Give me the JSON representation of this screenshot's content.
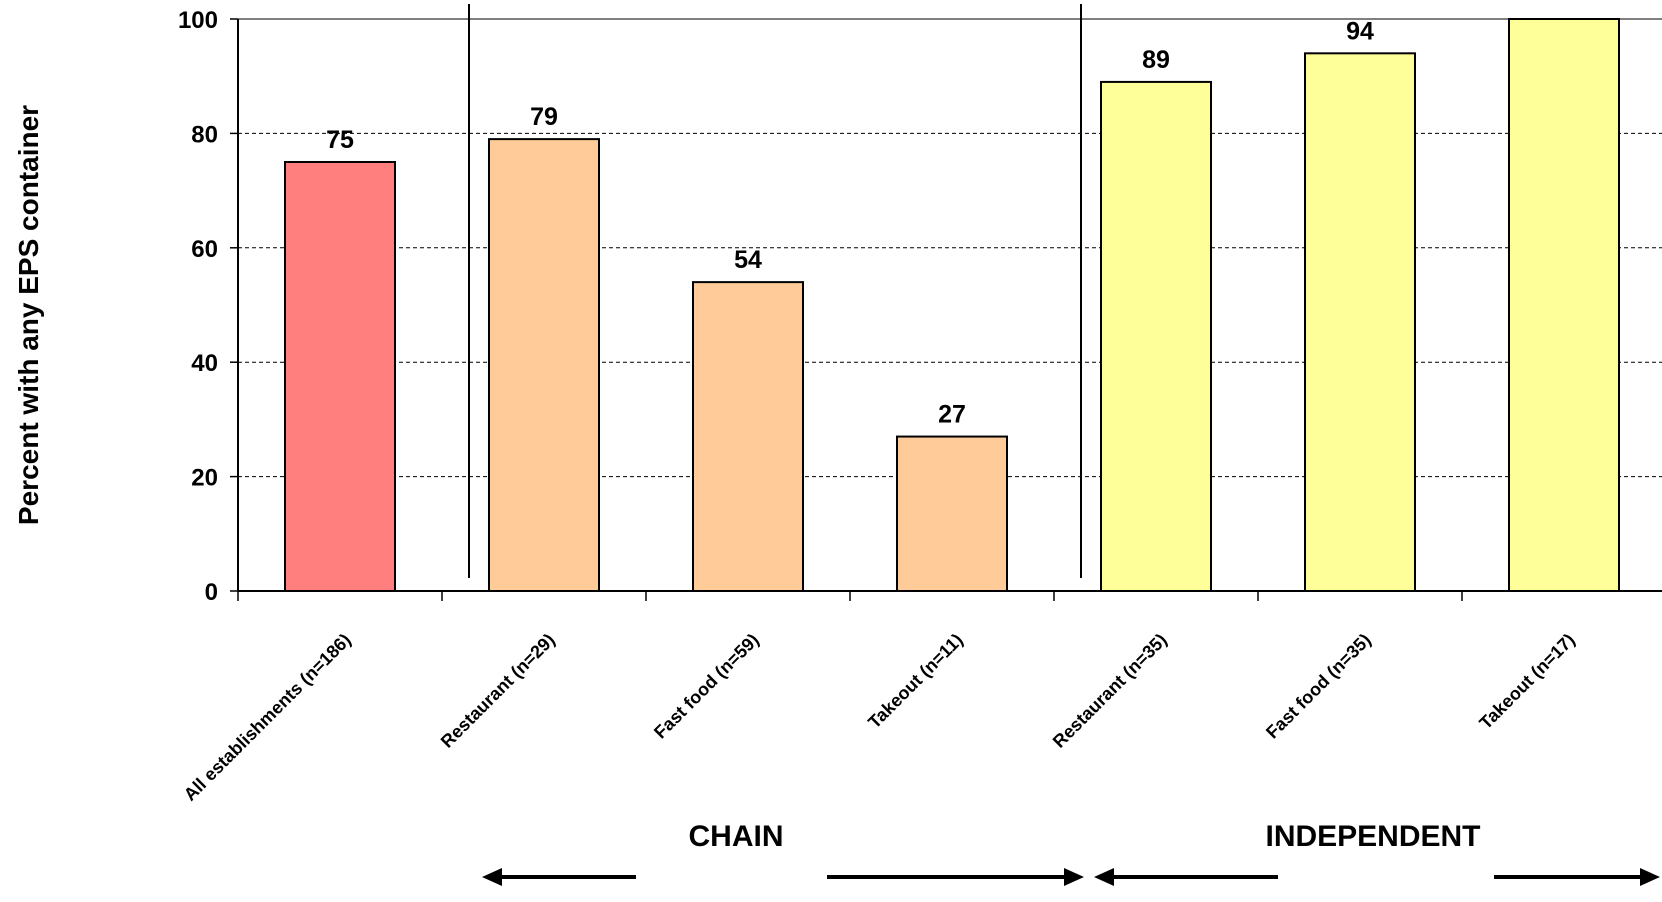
{
  "chart_data": {
    "type": "bar",
    "ylabel": "Percent with any EPS container",
    "ylim": [
      0,
      100
    ],
    "yticks": [
      0,
      20,
      40,
      60,
      80,
      100
    ],
    "grid": true,
    "categories": [
      "All establishments (n=186)",
      "Restaurant (n=29)",
      "Fast food (n=59)",
      "Takeout (n=11)",
      "Restaurant (n=35)",
      "Fast food (n=35)",
      "Takeout (n=17)"
    ],
    "values": [
      75,
      79,
      54,
      27,
      89,
      94,
      100
    ],
    "data_labels": [
      "75",
      "79",
      "54",
      "27",
      "89",
      "94",
      ""
    ],
    "bar_colors": [
      "#ff7f7f",
      "#ffcc99",
      "#ffcc99",
      "#ffcc99",
      "#ffff99",
      "#ffff99",
      "#ffff99"
    ],
    "groups": [
      {
        "label": "CHAIN",
        "categories": [
          "Restaurant (n=29)",
          "Fast food (n=59)",
          "Takeout (n=11)"
        ]
      },
      {
        "label": "INDEPENDENT",
        "categories": [
          "Restaurant (n=35)",
          "Fast food (n=35)",
          "Takeout (n=17)"
        ]
      }
    ]
  }
}
